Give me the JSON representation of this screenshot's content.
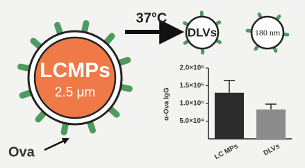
{
  "diagram": {
    "lcmp_label": "LCMPs",
    "lcmp_size": "2.5 μm",
    "antigen": "Ova",
    "condition": "37°C",
    "dlv_label": "DLVs",
    "dlv_size": "180 nm"
  },
  "chart_data": {
    "type": "bar",
    "y_label": "α-Ova IgG",
    "categories": [
      "LC MPs",
      "DLVs"
    ],
    "series": [
      {
        "values": [
          130000,
          83000
        ],
        "errors": [
          35000,
          15000
        ],
        "colors": [
          "#2b2b2b",
          "#8c8c8c"
        ]
      }
    ],
    "ylim": [
      0,
      200000
    ],
    "yticks": [
      {
        "value": 50000,
        "label": "5.0×10⁴"
      },
      {
        "value": 100000,
        "label": "1.0×10⁵"
      },
      {
        "value": 150000,
        "label": "1.5×10⁵"
      },
      {
        "value": 200000,
        "label": "2.0×10⁵"
      }
    ]
  }
}
